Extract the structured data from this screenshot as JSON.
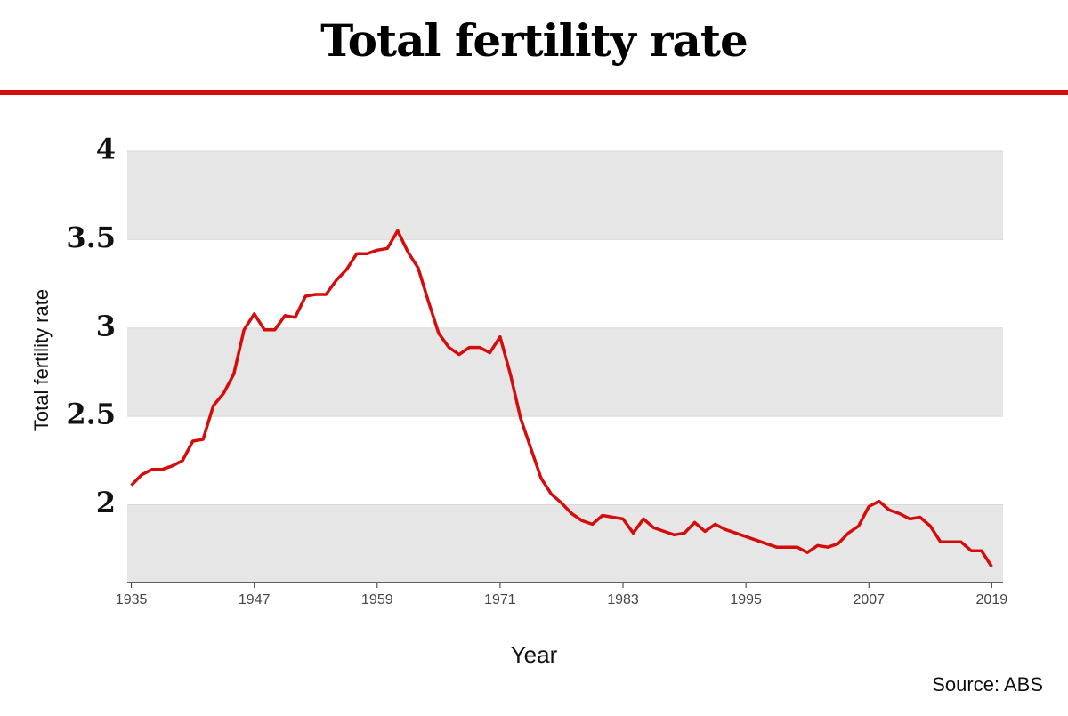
{
  "chart_data": {
    "type": "line",
    "title": "Total fertility rate",
    "x_label": "Year",
    "y_label": "Total fertility rate",
    "source": "Source: ABS",
    "x": [
      1935,
      1936,
      1937,
      1938,
      1939,
      1940,
      1941,
      1942,
      1943,
      1944,
      1945,
      1946,
      1947,
      1948,
      1949,
      1950,
      1951,
      1952,
      1953,
      1954,
      1955,
      1956,
      1957,
      1958,
      1959,
      1960,
      1961,
      1962,
      1963,
      1964,
      1965,
      1966,
      1967,
      1968,
      1969,
      1970,
      1971,
      1972,
      1973,
      1974,
      1975,
      1976,
      1977,
      1978,
      1979,
      1980,
      1981,
      1982,
      1983,
      1984,
      1985,
      1986,
      1987,
      1988,
      1989,
      1990,
      1991,
      1992,
      1993,
      1994,
      1995,
      1996,
      1997,
      1998,
      1999,
      2000,
      2001,
      2002,
      2003,
      2004,
      2005,
      2006,
      2007,
      2008,
      2009,
      2010,
      2011,
      2012,
      2013,
      2014,
      2015,
      2016,
      2017,
      2018,
      2019
    ],
    "series": [
      {
        "name": "Total fertility rate",
        "color": "#d40c0c",
        "values": [
          2.11,
          2.17,
          2.2,
          2.2,
          2.22,
          2.25,
          2.36,
          2.37,
          2.56,
          2.63,
          2.74,
          2.99,
          3.08,
          2.99,
          2.99,
          3.07,
          3.06,
          3.18,
          3.19,
          3.19,
          3.27,
          3.33,
          3.42,
          3.42,
          3.44,
          3.45,
          3.55,
          3.43,
          3.34,
          3.15,
          2.97,
          2.89,
          2.85,
          2.89,
          2.89,
          2.86,
          2.95,
          2.74,
          2.49,
          2.32,
          2.15,
          2.06,
          2.01,
          1.95,
          1.91,
          1.89,
          1.94,
          1.93,
          1.92,
          1.84,
          1.92,
          1.87,
          1.85,
          1.83,
          1.84,
          1.9,
          1.85,
          1.89,
          1.86,
          1.84,
          1.82,
          1.8,
          1.78,
          1.76,
          1.76,
          1.76,
          1.73,
          1.77,
          1.76,
          1.78,
          1.84,
          1.88,
          1.99,
          2.02,
          1.97,
          1.95,
          1.92,
          1.93,
          1.88,
          1.79,
          1.79,
          1.79,
          1.74,
          1.74,
          1.65
        ]
      }
    ],
    "xlim": [
      1934.6,
      2020.1
    ],
    "xticks": [
      1935,
      1947,
      1959,
      1971,
      1983,
      1995,
      2007,
      2019
    ],
    "ylim": [
      1.56,
      4
    ],
    "yticks": [
      2,
      2.5,
      3,
      3.5,
      4
    ],
    "grid": "bands"
  }
}
